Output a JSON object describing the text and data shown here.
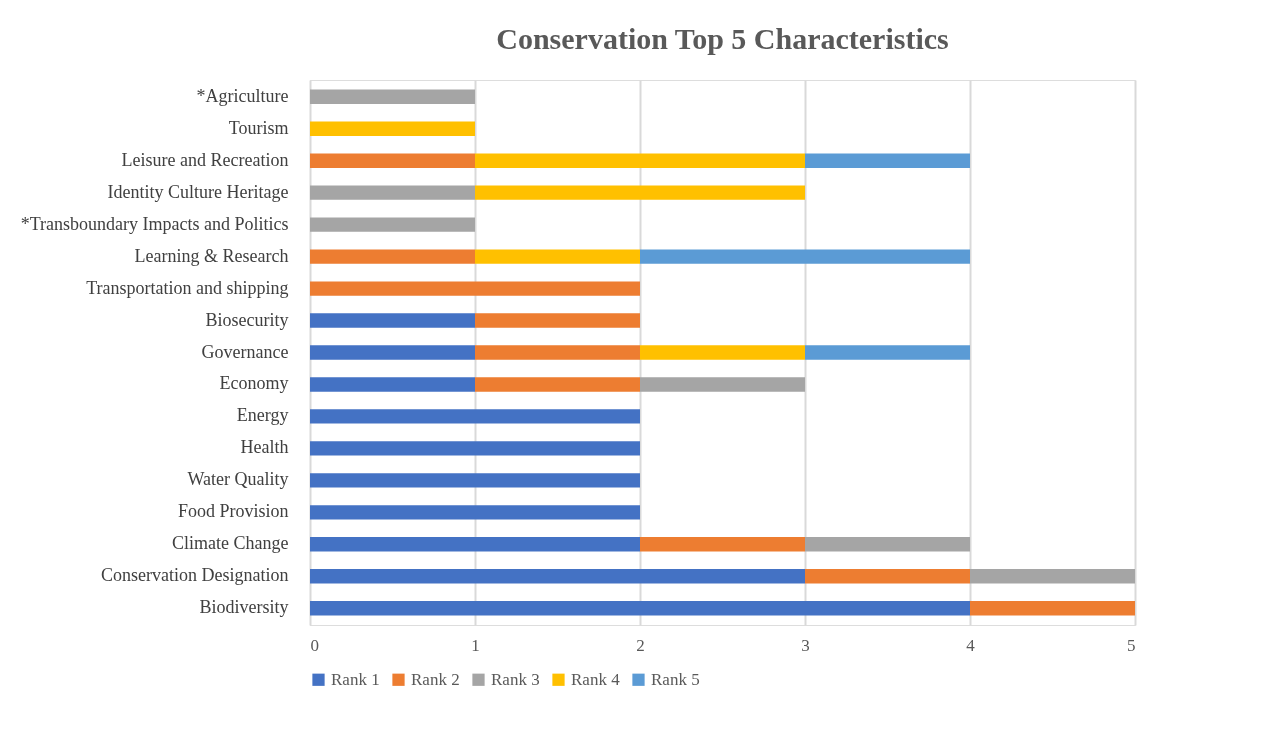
{
  "chart_data": {
    "type": "bar",
    "orientation": "horizontal",
    "stacked": true,
    "title": "Conservation Top 5 Characteristics",
    "categories": [
      "*Agriculture",
      "Tourism",
      "Leisure and Recreation",
      "Identity Culture Heritage",
      "*Transboundary Impacts and Politics",
      "Learning & Research",
      "Transportation and shipping",
      "Biosecurity",
      "Governance",
      "Economy",
      "Energy",
      "Health",
      "Water Quality",
      "Food Provision",
      "Climate Change",
      "Conservation Designation",
      "Biodiversity"
    ],
    "series": [
      {
        "name": "Rank 1",
        "color": "#4472c4",
        "values": [
          null,
          null,
          null,
          null,
          null,
          null,
          null,
          1,
          1,
          1,
          2,
          2,
          2,
          2,
          2,
          3,
          4
        ]
      },
      {
        "name": "Rank 2",
        "color": "#ed7d31",
        "values": [
          null,
          null,
          1,
          null,
          null,
          1,
          2,
          1,
          1,
          1,
          null,
          null,
          null,
          null,
          1,
          1,
          1
        ]
      },
      {
        "name": "Rank 3",
        "color": "#a5a5a5",
        "values": [
          1,
          null,
          null,
          1,
          1,
          null,
          null,
          null,
          null,
          1,
          null,
          null,
          null,
          null,
          1,
          1,
          null
        ]
      },
      {
        "name": "Rank 4",
        "color": "#ffc000",
        "values": [
          null,
          1,
          2,
          2,
          null,
          1,
          null,
          null,
          1,
          null,
          null,
          null,
          null,
          null,
          null,
          null,
          null
        ]
      },
      {
        "name": "Rank 5",
        "color": "#5b9bd5",
        "values": [
          null,
          null,
          1,
          null,
          null,
          2,
          null,
          null,
          1,
          null,
          null,
          null,
          null,
          null,
          null,
          null,
          null
        ]
      }
    ],
    "xlim": [
      0,
      5
    ],
    "xticks": [
      0,
      1,
      2,
      3,
      4,
      5
    ],
    "grid": "x",
    "legend": "bottom"
  }
}
